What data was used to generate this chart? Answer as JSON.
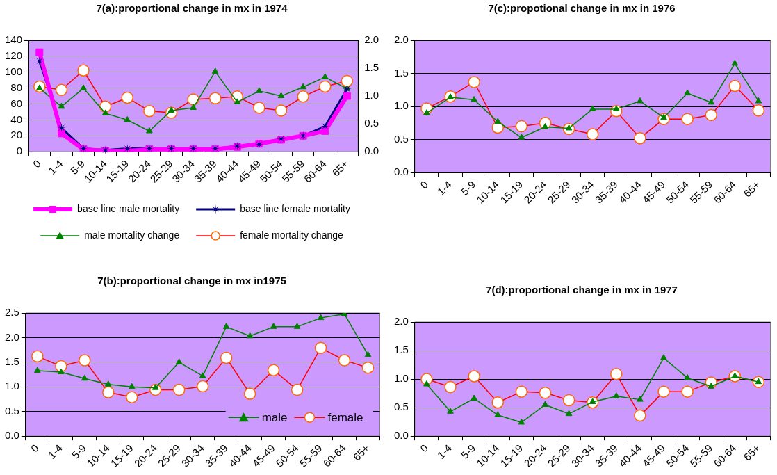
{
  "chart_data": [
    {
      "type": "line",
      "title": "7(a):proportional change in mx in 1974",
      "categories": [
        "0",
        "1-4",
        "5-9",
        "10-14",
        "15-19",
        "20-24",
        "25-29",
        "30-34",
        "35-39",
        "40-44",
        "45-49",
        "50-54",
        "55-59",
        "60-64",
        "65+"
      ],
      "ylim": [
        0,
        140
      ],
      "yticks": [
        0,
        20,
        40,
        60,
        80,
        100,
        120,
        140
      ],
      "y2lim": [
        0,
        2.0
      ],
      "y2ticks": [
        {
          "value": 0,
          "label": "0.0"
        },
        {
          "value": 0.5,
          "label": "0.5"
        },
        {
          "value": 1,
          "label": "1.0"
        },
        {
          "value": 1.5,
          "label": "1.5"
        },
        {
          "value": 2,
          "label": "2.0"
        }
      ],
      "grid": "y",
      "legend": "bottom",
      "series": [
        {
          "name": "base line male mortality",
          "color": "#ff00ff",
          "marker": "square",
          "values": [
            125,
            23,
            3,
            1,
            1,
            3,
            3,
            3,
            3,
            6,
            10,
            15,
            20,
            26,
            70
          ]
        },
        {
          "name": "base line female mortality",
          "color": "#000080",
          "marker": "star",
          "values": [
            114,
            30,
            4,
            2,
            4,
            4,
            4,
            4,
            4,
            7,
            9,
            16,
            20,
            32,
            79
          ]
        },
        {
          "name": "male mortality change",
          "color": "#008000",
          "marker": "triangle",
          "axis": "y2",
          "values": [
            1.14,
            0.81,
            1.14,
            0.69,
            0.57,
            0.37,
            0.74,
            0.79,
            1.44,
            0.89,
            1.09,
            1.0,
            1.16,
            1.34,
            1.13
          ]
        },
        {
          "name": "female mortality change",
          "color": "#ff0000",
          "marker": "circle",
          "axis": "y2",
          "values": [
            1.17,
            1.11,
            1.46,
            0.81,
            0.97,
            0.73,
            0.7,
            0.94,
            0.96,
            0.99,
            0.79,
            0.74,
            0.99,
            1.17,
            1.27
          ]
        }
      ]
    },
    {
      "type": "line",
      "title": "7(c):propotional change in mx in 1976",
      "categories": [
        "0",
        "1-4",
        "5-9",
        "10-14",
        "15-19",
        "20-24",
        "25-29",
        "30-34",
        "35-39",
        "40-44",
        "45-49",
        "50-54",
        "55-59",
        "60-64",
        "65+"
      ],
      "ylim": [
        0,
        2.0
      ],
      "yticks": [
        {
          "value": 0,
          "label": "0.0"
        },
        {
          "value": 0.5,
          "label": "0.5"
        },
        {
          "value": 1,
          "label": "1.0"
        },
        {
          "value": 1.5,
          "label": "1.5"
        },
        {
          "value": 2,
          "label": "2.0"
        }
      ],
      "grid": "y",
      "series": [
        {
          "color": "#008000",
          "marker": "triangle",
          "values": [
            0.9,
            1.14,
            1.1,
            0.77,
            0.53,
            0.69,
            0.67,
            0.96,
            0.96,
            1.08,
            0.83,
            1.2,
            1.06,
            1.65,
            1.08
          ]
        },
        {
          "color": "#ff0000",
          "marker": "circle",
          "values": [
            0.97,
            1.15,
            1.37,
            0.68,
            0.7,
            0.75,
            0.66,
            0.58,
            0.93,
            0.52,
            0.81,
            0.81,
            0.87,
            1.31,
            0.94
          ]
        }
      ]
    },
    {
      "type": "line",
      "title": "7(b):proportional change in mx in1975",
      "categories": [
        "0",
        "1-4",
        "5-9",
        "10-14",
        "15-19",
        "20-24",
        "25-29",
        "30-34",
        "35-39",
        "40-44",
        "45-49",
        "50-54",
        "55-59",
        "60-64",
        "65+"
      ],
      "ylim": [
        0,
        2.5
      ],
      "yticks": [
        {
          "value": 0,
          "label": "0.0"
        },
        {
          "value": 0.5,
          "label": "0.5"
        },
        {
          "value": 1,
          "label": "1.0"
        },
        {
          "value": 1.5,
          "label": "1.5"
        },
        {
          "value": 2,
          "label": "2.0"
        },
        {
          "value": 2.5,
          "label": "2.5"
        }
      ],
      "grid": "y",
      "legend": "bottom right",
      "series": [
        {
          "name": "male",
          "color": "#008000",
          "marker": "triangle",
          "values": [
            1.33,
            1.3,
            1.17,
            1.05,
            1.0,
            0.98,
            1.5,
            1.22,
            2.22,
            2.03,
            2.22,
            2.22,
            2.4,
            2.48,
            1.65
          ]
        },
        {
          "name": "female",
          "color": "#ff0000",
          "marker": "circle",
          "values": [
            1.62,
            1.42,
            1.54,
            0.89,
            0.79,
            0.94,
            0.94,
            1.01,
            1.59,
            0.86,
            1.34,
            0.94,
            1.79,
            1.54,
            1.39
          ]
        }
      ]
    },
    {
      "type": "line",
      "title": "7(d):proportional change in mx in 1977",
      "categories": [
        "0",
        "1-4",
        "5-9",
        "10-14",
        "15-19",
        "20-24",
        "25-29",
        "30-34",
        "35-39",
        "40-44",
        "45-49",
        "50-54",
        "55-59",
        "60-64",
        "65+"
      ],
      "ylim": [
        0,
        2.0
      ],
      "yticks": [
        {
          "value": 0,
          "label": "0.0"
        },
        {
          "value": 0.5,
          "label": "0.5"
        },
        {
          "value": 1,
          "label": "1.0"
        },
        {
          "value": 1.5,
          "label": "1.5"
        },
        {
          "value": 2,
          "label": "2.0"
        }
      ],
      "grid": "y",
      "series": [
        {
          "color": "#008000",
          "marker": "triangle",
          "values": [
            0.91,
            0.43,
            0.66,
            0.37,
            0.24,
            0.55,
            0.39,
            0.6,
            0.7,
            0.64,
            1.37,
            1.02,
            0.87,
            1.05,
            0.95
          ]
        },
        {
          "color": "#ff0000",
          "marker": "circle",
          "values": [
            1.0,
            0.86,
            1.05,
            0.59,
            0.78,
            0.76,
            0.63,
            0.59,
            1.09,
            0.36,
            0.78,
            0.78,
            0.94,
            1.05,
            0.95
          ]
        }
      ]
    }
  ]
}
